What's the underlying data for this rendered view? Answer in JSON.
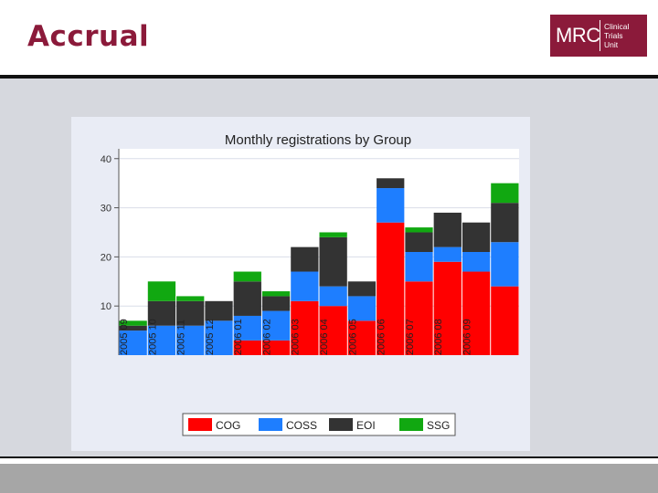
{
  "slide": {
    "title": "Accrual"
  },
  "logo": {
    "mrc": "MRC",
    "line1": "Clinical",
    "line2": "Trials",
    "line3": "Unit"
  },
  "colors": {
    "COG": "#ff0000",
    "COSS": "#1e7eff",
    "EOI": "#333333",
    "SSG": "#11a811",
    "brand": "#8b1a3a"
  },
  "chart_data": {
    "type": "bar",
    "stacked": true,
    "title": "Monthly registrations by Group",
    "xlabel": "",
    "ylabel": "",
    "ylim": [
      0,
      42
    ],
    "yticks": [
      10,
      20,
      30,
      40
    ],
    "grid": true,
    "legend_position": "bottom",
    "categories": [
      "2005 09",
      "2005 10",
      "2005 11",
      "2005 12",
      "2006 01",
      "2006 02",
      "2006 03",
      "2006 04",
      "2006 05",
      "2006 06",
      "2006 07",
      "2006 08",
      "2006 09",
      ""
    ],
    "series": [
      {
        "name": "COG",
        "values": [
          0,
          0,
          0,
          0,
          3,
          3,
          11,
          10,
          7,
          27,
          15,
          19,
          17,
          14
        ]
      },
      {
        "name": "COSS",
        "values": [
          5,
          6,
          6,
          7,
          5,
          6,
          6,
          4,
          5,
          7,
          6,
          3,
          4,
          9
        ]
      },
      {
        "name": "EOI",
        "values": [
          1,
          5,
          5,
          4,
          7,
          3,
          5,
          10,
          3,
          2,
          4,
          7,
          6,
          8
        ]
      },
      {
        "name": "SSG",
        "values": [
          1,
          4,
          1,
          0,
          2,
          1,
          0,
          1,
          0,
          0,
          1,
          0,
          0,
          4
        ]
      }
    ]
  }
}
